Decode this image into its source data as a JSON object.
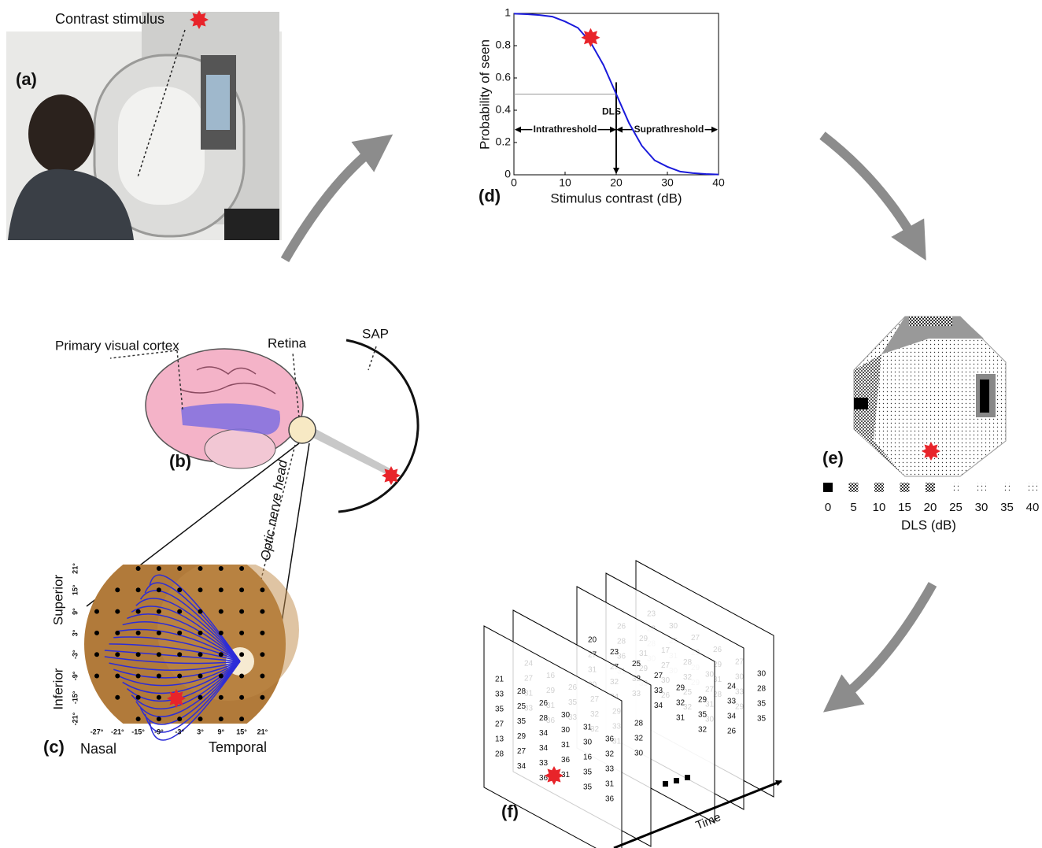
{
  "panel_a": {
    "label": "(a)",
    "stimulus_label": "Contrast stimulus"
  },
  "panel_b": {
    "label": "(b)",
    "cortex_label": "Primary visual cortex",
    "retina_label": "Retina",
    "sap_label": "SAP",
    "nerve_label": "Optic nerve head"
  },
  "panel_c": {
    "label": "(c)",
    "superior": "Superior",
    "inferior": "Inferior",
    "nasal": "Nasal",
    "temporal": "Temporal",
    "y_ticks": [
      "21°",
      "15°",
      "9°",
      "3°",
      "-3°",
      "-9°",
      "-15°",
      "-21°"
    ],
    "x_ticks": [
      "-27°",
      "-21°",
      "-15°",
      "-9°",
      "-3°",
      "3°",
      "9°",
      "15°",
      "21°"
    ]
  },
  "chart_data": {
    "type": "line",
    "panel_label": "(d)",
    "xlabel": "Stimulus contrast (dB)",
    "ylabel": "Probability of seen",
    "x": [
      0,
      2.5,
      5,
      7.5,
      10,
      12.5,
      15,
      17.5,
      20,
      22.5,
      25,
      27.5,
      30,
      32.5,
      35,
      37.5,
      40
    ],
    "series": [
      {
        "color": "#1a1adb",
        "values": [
          0.998,
          0.995,
          0.99,
          0.98,
          0.95,
          0.91,
          0.82,
          0.68,
          0.5,
          0.32,
          0.18,
          0.09,
          0.05,
          0.02,
          0.01,
          0.005,
          0.002
        ]
      }
    ],
    "xlim": [
      0,
      40
    ],
    "ylim": [
      0,
      1
    ],
    "xticks": [
      0,
      10,
      20,
      30,
      40
    ],
    "yticks": [
      0,
      0.2,
      0.4,
      0.6,
      0.8,
      1
    ],
    "annotations": {
      "dls": "DLS",
      "intra": "Intrathreshold",
      "supra": "Suprathreshold"
    },
    "threshold": {
      "x": 20,
      "y": 0.5
    },
    "highlight": {
      "x": 15,
      "y": 0.85
    }
  },
  "panel_e": {
    "label": "(e)",
    "scale_ticks": [
      0,
      5,
      10,
      15,
      20,
      25,
      30,
      35,
      40
    ],
    "axis_label": "DLS (dB)"
  },
  "panel_f": {
    "label": "(f)",
    "time_label": "Time",
    "planes": [
      [
        23,
        30,
        27,
        26,
        27,
        30,
        28,
        25,
        29,
        29,
        30,
        28,
        28,
        31,
        29,
        31,
        33,
        35,
        30,
        30,
        29,
        28,
        29,
        35
      ],
      [
        26,
        29,
        17,
        28,
        30,
        24,
        28,
        31,
        27,
        32,
        27,
        33,
        36,
        29,
        30,
        25,
        31,
        34,
        31,
        33,
        26,
        32,
        30,
        26
      ],
      [
        20,
        23,
        25,
        27,
        29,
        29,
        27,
        27,
        32,
        33,
        32,
        35,
        31,
        32,
        33,
        34,
        31,
        32,
        30,
        34
      ],
      [
        24,
        16,
        26,
        27,
        29,
        28,
        27,
        29,
        35,
        32,
        33,
        32,
        31,
        31,
        33,
        32,
        31,
        30,
        33,
        36
      ],
      [
        21,
        28,
        26,
        30,
        31,
        36,
        33,
        25,
        28,
        30,
        30,
        32,
        35,
        35,
        34,
        31,
        16,
        33,
        27,
        29,
        34,
        36,
        35,
        31,
        13,
        27,
        33,
        31,
        35,
        36,
        28,
        34,
        36
      ]
    ]
  }
}
